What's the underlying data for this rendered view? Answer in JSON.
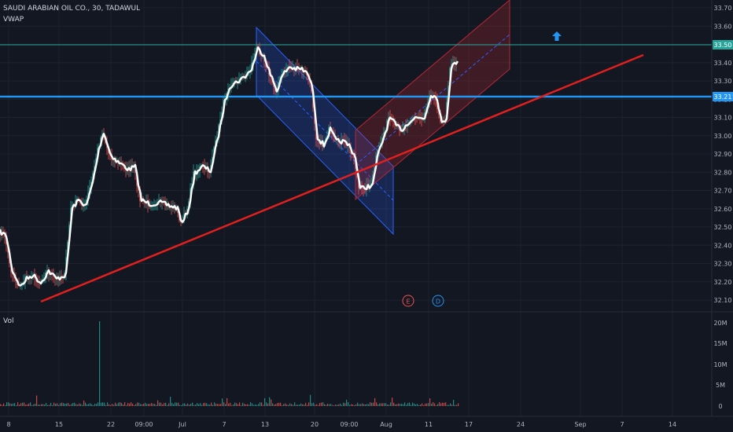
{
  "legend": {
    "symbol": "SAUDI ARABIAN OIL CO., 30, TADAWUL",
    "indicator": "VWAP"
  },
  "volume_pane": {
    "label": "Vol"
  },
  "colors": {
    "background": "#131722",
    "price_line": "#ffffff",
    "trendline": "#e0201e",
    "hline_blue": "#2196f3",
    "hline_green": "#26a69a",
    "candle_up": "#26a69a",
    "candle_down": "#ef5350",
    "channel_blue": "#2962ff",
    "channel_red": "#b22833"
  },
  "markers": {
    "earnings": "E",
    "dividend": "D",
    "arrow": "arrow-up-icon"
  },
  "chart_data": {
    "type": "line",
    "title": "SAUDI ARABIAN OIL CO., 30, TADAWUL",
    "price_axis_ticks": [
      "33.70",
      "33.60",
      "33.50",
      "33.40",
      "33.30",
      "33.20",
      "33.10",
      "33.00",
      "32.90",
      "32.80",
      "32.70",
      "32.60",
      "32.50",
      "32.40",
      "32.30",
      "32.20",
      "32.10"
    ],
    "price_range": [
      32.06,
      33.72
    ],
    "price_badges": [
      {
        "value": "33.50",
        "color": "#26a69a"
      },
      {
        "value": "33.21",
        "color": "#2196f3"
      }
    ],
    "volume_axis_ticks": [
      "20M",
      "15M",
      "10M",
      "5M",
      "0"
    ],
    "time_axis_labels": [
      "8",
      "15",
      "22",
      "09:00",
      "Jul",
      "7",
      "13",
      "20",
      "09:00",
      "Aug",
      "11",
      "17",
      "24",
      "Sep",
      "7",
      "14"
    ],
    "series": [
      {
        "name": "VWAP",
        "x": [
          "8",
          "15",
          "22",
          "09:00",
          "Jul",
          "7",
          "13",
          "20",
          "09:00",
          "Aug",
          "11"
        ],
        "values": [
          32.5,
          32.2,
          32.95,
          32.65,
          32.45,
          33.0,
          33.45,
          32.95,
          32.7,
          33.05,
          33.45
        ]
      }
    ],
    "volume": {
      "typical_M": 0.5,
      "spike_M": 20.0,
      "spike_at": "22"
    }
  }
}
